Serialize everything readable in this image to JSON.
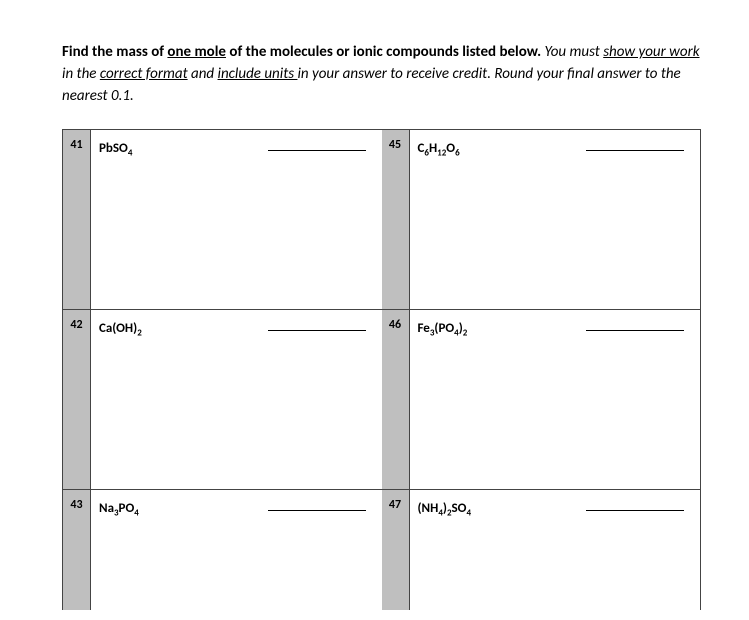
{
  "instructions": {
    "line1_bold": "Find the mass of ",
    "line1_bold_underline": "one mole",
    "line1_bold_tail": " of the molecules or ionic compounds listed below.",
    "line1_italic_lead": " You must ",
    "line1_italic_u1": "show your work",
    "line1_italic_mid1": " in the ",
    "line1_italic_u2": "correct format",
    "line1_italic_mid2": " and ",
    "line1_italic_u3": "include units ",
    "line1_italic_tail": "in your answer to receive credit. Round your final answer to the nearest 0.1."
  },
  "problems": {
    "left": [
      {
        "num": "41",
        "formula_html": "PbSO<sub>4</sub>"
      },
      {
        "num": "42",
        "formula_html": "Ca(OH)<sub>2</sub>"
      },
      {
        "num": "43",
        "formula_html": "Na<sub>3</sub>PO<sub>4</sub>"
      }
    ],
    "right": [
      {
        "num": "45",
        "formula_html": "C<sub>6</sub>H<sub>12</sub>O<sub>6</sub>"
      },
      {
        "num": "46",
        "formula_html": "Fe<sub>3</sub>(PO<sub>4</sub>)<sub>2</sub>"
      },
      {
        "num": "47",
        "formula_html": "(NH<sub>4</sub>)<sub>2</sub>SO<sub>4</sub>"
      }
    ]
  },
  "colors": {
    "cell_shade": "#bfbfbf",
    "border": "#444444",
    "text": "#000000",
    "background": "#ffffff"
  }
}
